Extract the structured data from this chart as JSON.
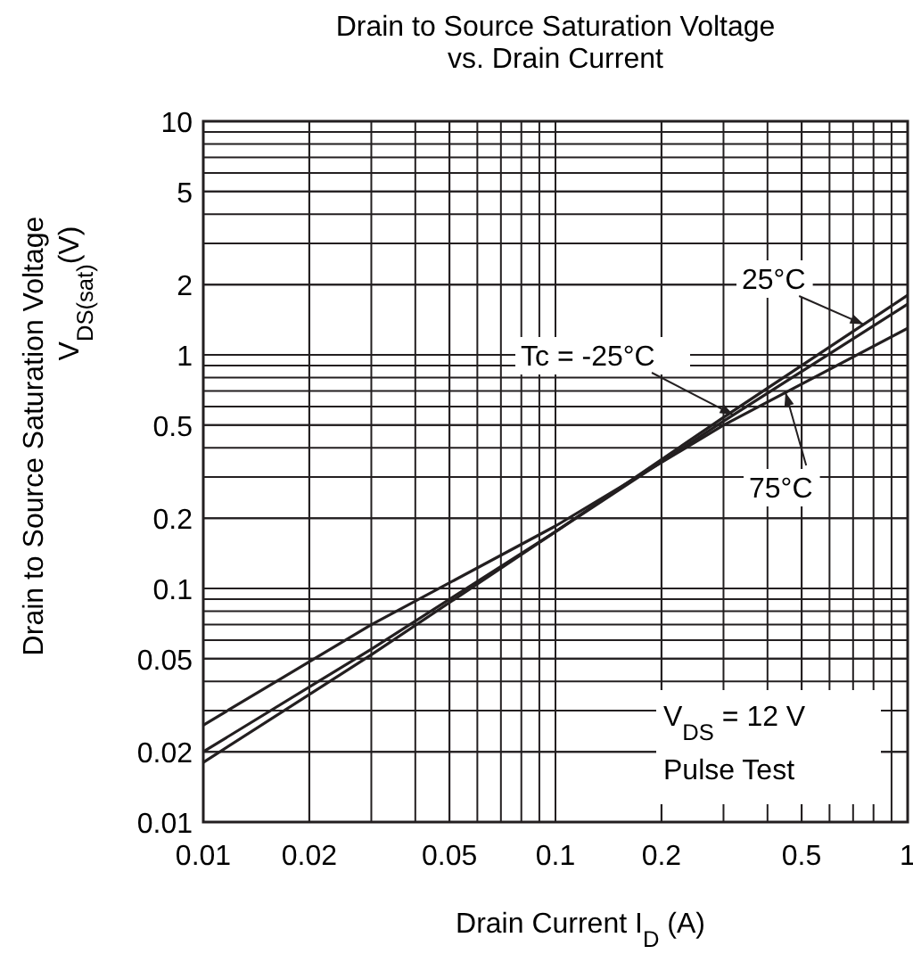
{
  "chart_data": {
    "type": "line",
    "title": "Drain to Source Saturation Voltage\nvs. Drain Current",
    "xlabel": "Drain Current  I$_{D}$  (A)",
    "ylabel": "Drain to Source Saturation Voltage\nV$_{DS(sat)}$(V)",
    "log": "xy",
    "grid": true,
    "marker": "none",
    "line_style": "solid",
    "xlim": [
      0.01,
      1
    ],
    "ylim": [
      0.01,
      10
    ],
    "xticks": [
      0.01,
      0.02,
      0.05,
      0.1,
      0.2,
      0.5,
      1
    ],
    "yticks": [
      0.01,
      0.02,
      0.05,
      0.1,
      0.2,
      0.5,
      1,
      2,
      5,
      10
    ],
    "series": [
      {
        "name": "Tc = -25°C",
        "color": "#231f20",
        "x": [
          0.01,
          0.03,
          0.1,
          0.3,
          1
        ],
        "values": [
          0.02,
          0.055,
          0.175,
          0.52,
          1.65
        ]
      },
      {
        "name": "25°C",
        "color": "#231f20",
        "x": [
          0.01,
          0.03,
          0.1,
          0.3,
          1
        ],
        "values": [
          0.018,
          0.052,
          0.175,
          0.54,
          1.8
        ]
      },
      {
        "name": "75°C",
        "color": "#231f20",
        "x": [
          0.01,
          0.03,
          0.1,
          0.3,
          1
        ],
        "values": [
          0.026,
          0.07,
          0.185,
          0.5,
          1.3
        ]
      }
    ],
    "annotations": [
      "V$_{DS}$  =  12 V",
      "Pulse Test"
    ]
  }
}
